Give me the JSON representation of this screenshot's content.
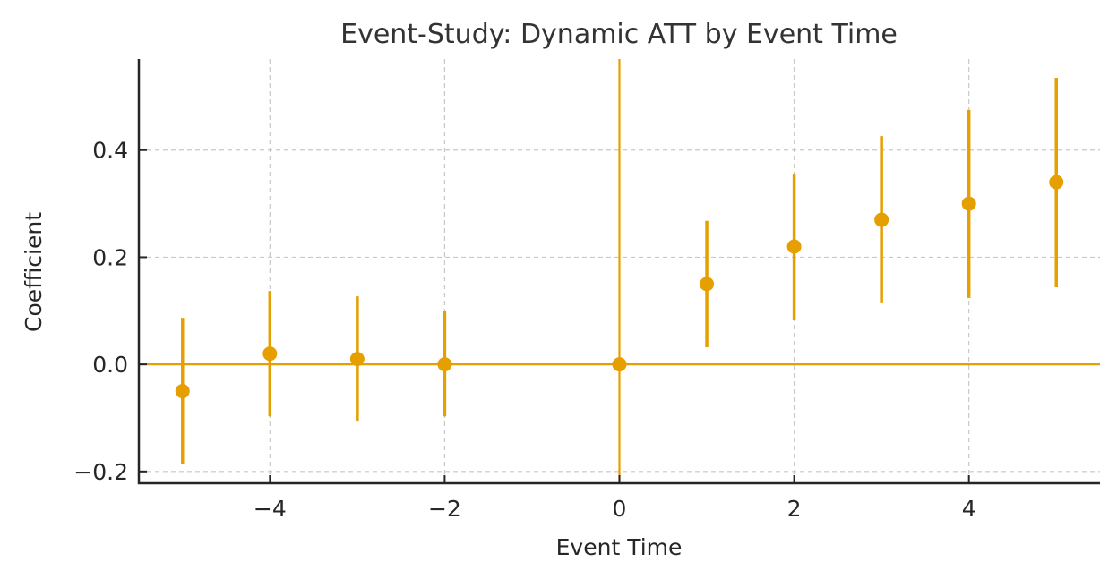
{
  "chart_data": {
    "type": "scatter",
    "subtype": "errorbar",
    "title": "Event-Study: Dynamic ATT by Event Time",
    "xlabel": "Event Time",
    "ylabel": "Coefficient",
    "xlim": [
      -5.5,
      5.5
    ],
    "ylim": [
      -0.222,
      0.57
    ],
    "xticks": [
      -4,
      -2,
      0,
      2,
      4
    ],
    "xtick_labels": [
      "−4",
      "−2",
      "0",
      "2",
      "4"
    ],
    "yticks": [
      -0.2,
      0.0,
      0.2,
      0.4
    ],
    "ytick_labels": [
      "−0.2",
      "0.0",
      "0.2",
      "0.4"
    ],
    "grid": true,
    "legend": null,
    "reference_lines": [
      {
        "orientation": "horizontal",
        "value": 0.0
      },
      {
        "orientation": "vertical",
        "value": 0
      }
    ],
    "series": [
      {
        "name": "ATT",
        "color": "#E69F00",
        "x": [
          -5,
          -4,
          -3,
          -2,
          0,
          1,
          2,
          3,
          4,
          5
        ],
        "values": [
          -0.05,
          0.02,
          0.01,
          0.0,
          0.0,
          0.15,
          0.22,
          0.27,
          0.3,
          0.34
        ],
        "ci_lower": [
          -0.186,
          -0.097,
          -0.107,
          -0.097,
          null,
          0.032,
          0.082,
          0.114,
          0.124,
          0.144
        ],
        "ci_upper": [
          0.087,
          0.137,
          0.127,
          0.099,
          null,
          0.268,
          0.356,
          0.426,
          0.475,
          0.535
        ]
      }
    ]
  },
  "colors": {
    "series": "#E69F00",
    "grid": "#c8c8c8",
    "axis": "#262626",
    "title": "#333333"
  }
}
